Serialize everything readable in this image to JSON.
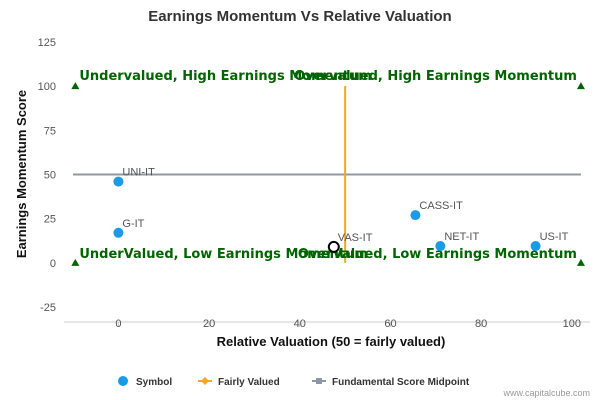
{
  "chart_data": {
    "type": "scatter",
    "title": "Earnings Momentum Vs Relative Valuation",
    "xlabel": "Relative Valuation (50 = fairly valued)",
    "ylabel": "Earnings Momentum Score",
    "xlim": [
      -12,
      104
    ],
    "ylim": [
      -25,
      125
    ],
    "x_ticks": [
      "0",
      "20",
      "40",
      "60",
      "80",
      "100"
    ],
    "y_ticks": [
      "125",
      "100",
      "75",
      "50",
      "25",
      "0",
      "-25"
    ],
    "grid": false,
    "points": [
      {
        "label": "UNI-IT",
        "x": 0,
        "y": 46
      },
      {
        "label": "G-IT",
        "x": 0,
        "y": 17
      },
      {
        "label": "CASS-IT",
        "x": 65.5,
        "y": 27
      },
      {
        "label": "VAS-IT",
        "x": 47.5,
        "y": 9,
        "highlighted": true
      },
      {
        "label": "NET-IT",
        "x": 71,
        "y": 9.5
      },
      {
        "label": "US-IT",
        "x": 92,
        "y": 9.5
      }
    ],
    "fairly_valued": {
      "x": 50,
      "y_range": [
        0,
        100
      ]
    },
    "midpoint": {
      "y": 50,
      "x_range": [
        -10,
        102
      ]
    },
    "corner_markers": [
      {
        "x": -9.5,
        "y": 100
      },
      {
        "x": 102,
        "y": 100
      },
      {
        "x": -9.5,
        "y": 0
      },
      {
        "x": 102,
        "y": 0
      }
    ],
    "quadrant_labels": [
      {
        "text": "Undervalued, High Earnings Momentum",
        "anchor": "upper-left"
      },
      {
        "text": "Overvalued, High Earnings Momentum",
        "anchor": "upper-right"
      },
      {
        "text": "UnderValued, Low Earnings Momentum",
        "anchor": "lower-left"
      },
      {
        "text": "OverValued, Low Earnings Momentum",
        "anchor": "lower-right"
      }
    ],
    "legend": {
      "position": "bottom",
      "items": [
        {
          "label": "Symbol",
          "marker": "circle",
          "color": "#1a9be8"
        },
        {
          "label": "Fairly Valued",
          "marker": "line-diamond",
          "color": "#f5a623"
        },
        {
          "label": "Fundamental Score Midpoint",
          "marker": "line-square",
          "color": "#8c98a6"
        }
      ]
    },
    "colors": {
      "point": "#1a9be8",
      "fairly_valued": "#f5a623",
      "midpoint": "#8c98a6",
      "quadrant_text": "#006400",
      "corner_marker": "#006400",
      "highlight_stroke": "#000000"
    }
  },
  "credit": "www.capitalcube.com"
}
